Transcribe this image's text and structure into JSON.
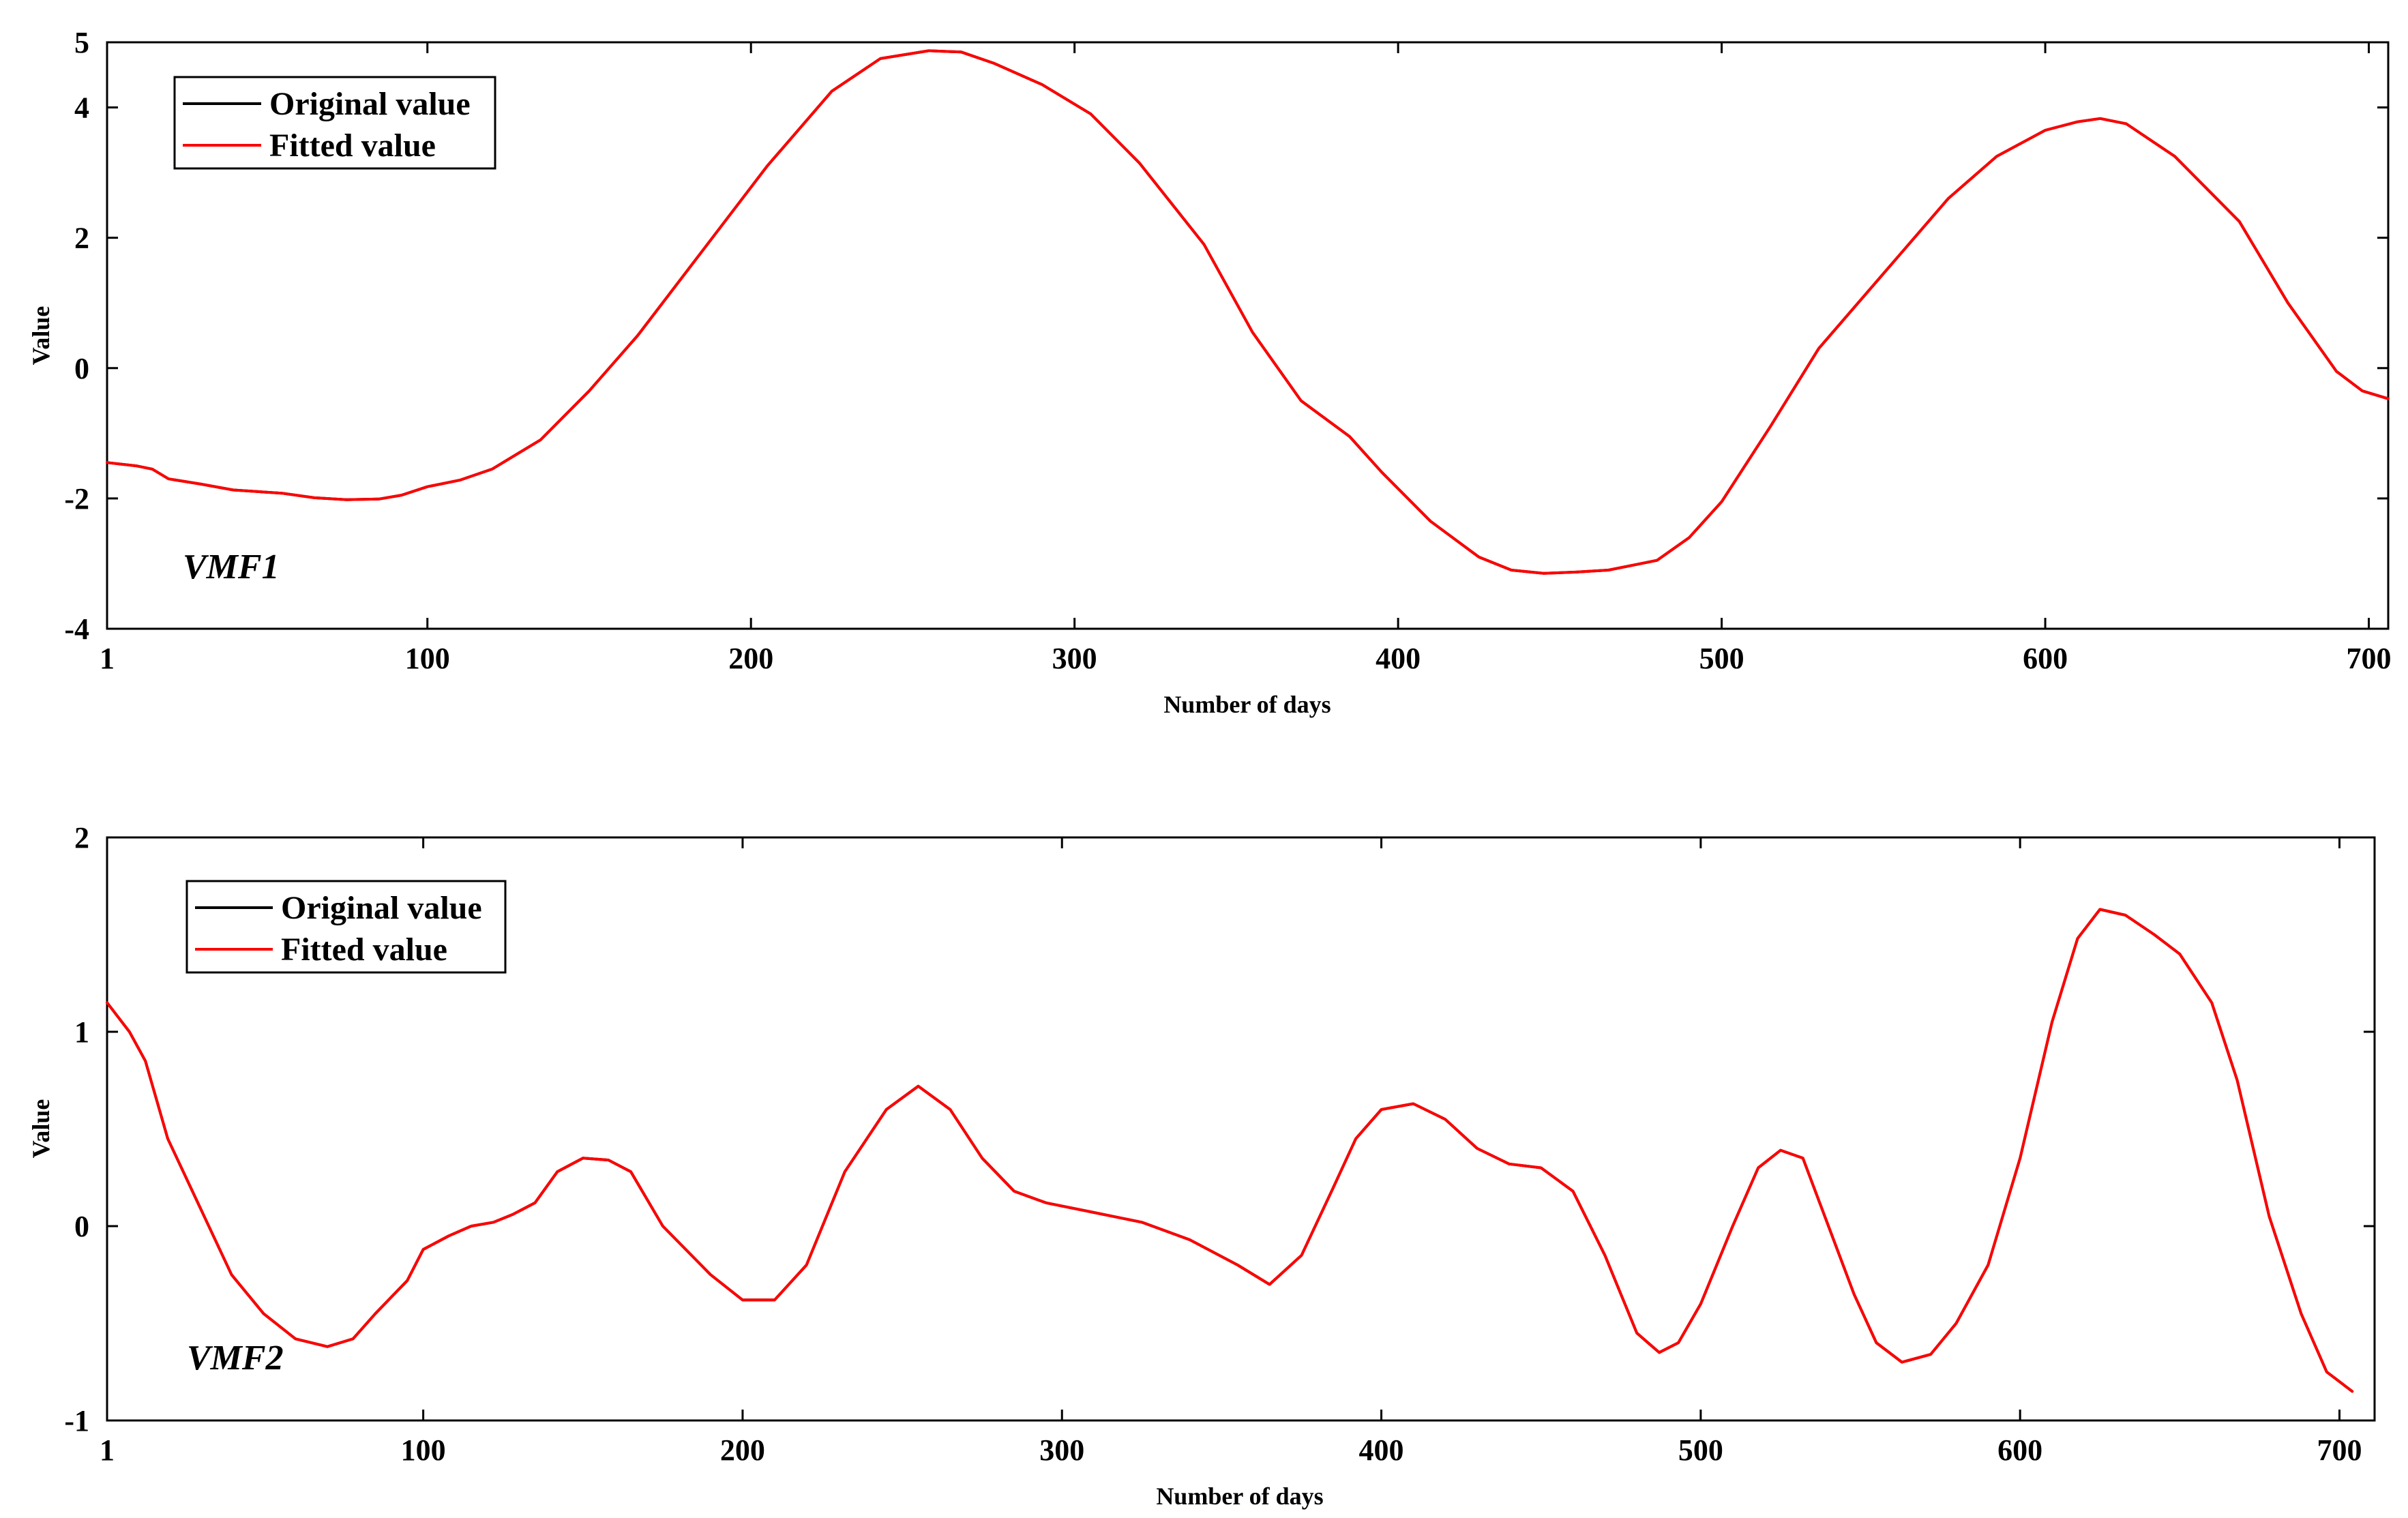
{
  "chart_data": [
    {
      "type": "line",
      "annotation": "VMF1",
      "xlabel": "Number of days",
      "ylabel": "Value",
      "xlim": [
        1,
        706
      ],
      "ylim": [
        -4,
        5
      ],
      "xticks": [
        1,
        100,
        200,
        300,
        400,
        500,
        600,
        700
      ],
      "yticks": [
        -4,
        -2,
        0,
        2,
        4,
        5
      ],
      "legend_position": "top-left",
      "grid": false,
      "series": [
        {
          "name": "Original value",
          "color": "#000000",
          "x": [
            1,
            10,
            15,
            20,
            30,
            40,
            55,
            65,
            75,
            85,
            92,
            100,
            110,
            120,
            135,
            150,
            165,
            185,
            205,
            225,
            240,
            255,
            265,
            275,
            290,
            305,
            320,
            340,
            355,
            370,
            385,
            395,
            410,
            425,
            435,
            445,
            455,
            465,
            480,
            490,
            500,
            515,
            530,
            550,
            570,
            585,
            600,
            610,
            617,
            625,
            640,
            660,
            675,
            690,
            698,
            706
          ],
          "y": [
            -1.45,
            -1.5,
            -1.55,
            -1.7,
            -1.78,
            -1.87,
            -1.92,
            -1.99,
            -2.02,
            -2.01,
            -1.95,
            -1.82,
            -1.72,
            -1.55,
            -1.1,
            -0.35,
            0.5,
            1.8,
            3.1,
            4.25,
            4.75,
            4.87,
            4.85,
            4.68,
            4.35,
            3.9,
            3.15,
            1.9,
            0.55,
            -0.5,
            -1.05,
            -1.6,
            -2.35,
            -2.9,
            -3.1,
            -3.15,
            -3.13,
            -3.1,
            -2.95,
            -2.6,
            -2.05,
            -0.9,
            0.3,
            1.45,
            2.6,
            3.25,
            3.65,
            3.78,
            3.83,
            3.75,
            3.25,
            2.25,
            1.0,
            -0.05,
            -0.35,
            -0.47
          ]
        },
        {
          "name": "Fitted value",
          "color": "#ff0000",
          "x": [
            1,
            10,
            15,
            20,
            30,
            40,
            55,
            65,
            75,
            85,
            92,
            100,
            110,
            120,
            135,
            150,
            165,
            185,
            205,
            225,
            240,
            255,
            265,
            275,
            290,
            305,
            320,
            340,
            355,
            370,
            385,
            395,
            410,
            425,
            435,
            445,
            455,
            465,
            480,
            490,
            500,
            515,
            530,
            550,
            570,
            585,
            600,
            610,
            617,
            625,
            640,
            660,
            675,
            690,
            698,
            706
          ],
          "y": [
            -1.45,
            -1.5,
            -1.55,
            -1.7,
            -1.78,
            -1.87,
            -1.92,
            -1.99,
            -2.02,
            -2.01,
            -1.95,
            -1.82,
            -1.72,
            -1.55,
            -1.1,
            -0.35,
            0.5,
            1.8,
            3.1,
            4.25,
            4.75,
            4.87,
            4.85,
            4.68,
            4.35,
            3.9,
            3.15,
            1.9,
            0.55,
            -0.5,
            -1.05,
            -1.6,
            -2.35,
            -2.9,
            -3.1,
            -3.15,
            -3.13,
            -3.1,
            -2.95,
            -2.6,
            -2.05,
            -0.9,
            0.3,
            1.45,
            2.6,
            3.25,
            3.65,
            3.78,
            3.83,
            3.75,
            3.25,
            2.25,
            1.0,
            -0.05,
            -0.35,
            -0.47
          ]
        }
      ]
    },
    {
      "type": "line",
      "annotation": "VMF2",
      "xlabel": "Number of days",
      "ylabel": "Value",
      "xlim": [
        1,
        711
      ],
      "ylim": [
        -1,
        2
      ],
      "xticks": [
        1,
        100,
        200,
        300,
        400,
        500,
        600,
        700
      ],
      "yticks": [
        -1,
        0,
        1,
        2
      ],
      "legend_position": "top-left",
      "grid": false,
      "series": [
        {
          "name": "Original value",
          "color": "#000000",
          "x": [
            1,
            8,
            13,
            20,
            30,
            40,
            50,
            60,
            70,
            78,
            85,
            95,
            100,
            108,
            115,
            122,
            128,
            135,
            142,
            150,
            158,
            165,
            175,
            190,
            200,
            210,
            220,
            232,
            245,
            255,
            265,
            275,
            285,
            295,
            310,
            325,
            340,
            355,
            365,
            375,
            385,
            392,
            400,
            410,
            420,
            430,
            440,
            450,
            460,
            470,
            480,
            487,
            493,
            500,
            510,
            518,
            525,
            532,
            540,
            548,
            555,
            563,
            572,
            580,
            590,
            600,
            610,
            618,
            625,
            633,
            642,
            650,
            660,
            668,
            678,
            688,
            696,
            704
          ],
          "y": [
            1.15,
            1.0,
            0.85,
            0.45,
            0.1,
            -0.25,
            -0.45,
            -0.58,
            -0.62,
            -0.58,
            -0.45,
            -0.28,
            -0.12,
            -0.05,
            0.0,
            0.02,
            0.06,
            0.12,
            0.28,
            0.35,
            0.34,
            0.28,
            0.0,
            -0.25,
            -0.38,
            -0.38,
            -0.2,
            0.28,
            0.6,
            0.72,
            0.6,
            0.35,
            0.18,
            0.12,
            0.07,
            0.02,
            -0.07,
            -0.2,
            -0.3,
            -0.15,
            0.2,
            0.45,
            0.6,
            0.63,
            0.55,
            0.4,
            0.32,
            0.3,
            0.18,
            -0.15,
            -0.55,
            -0.65,
            -0.6,
            -0.4,
            0.0,
            0.3,
            0.39,
            0.35,
            0.0,
            -0.35,
            -0.6,
            -0.7,
            -0.66,
            -0.5,
            -0.2,
            0.35,
            1.05,
            1.48,
            1.63,
            1.6,
            1.5,
            1.4,
            1.15,
            0.75,
            0.05,
            -0.45,
            -0.75,
            -0.85
          ]
        },
        {
          "name": "Fitted value",
          "color": "#ff0000",
          "x": [
            1,
            8,
            13,
            20,
            30,
            40,
            50,
            60,
            70,
            78,
            85,
            95,
            100,
            108,
            115,
            122,
            128,
            135,
            142,
            150,
            158,
            165,
            175,
            190,
            200,
            210,
            220,
            232,
            245,
            255,
            265,
            275,
            285,
            295,
            310,
            325,
            340,
            355,
            365,
            375,
            385,
            392,
            400,
            410,
            420,
            430,
            440,
            450,
            460,
            470,
            480,
            487,
            493,
            500,
            510,
            518,
            525,
            532,
            540,
            548,
            555,
            563,
            572,
            580,
            590,
            600,
            610,
            618,
            625,
            633,
            642,
            650,
            660,
            668,
            678,
            688,
            696,
            704
          ],
          "y": [
            1.15,
            1.0,
            0.85,
            0.45,
            0.1,
            -0.25,
            -0.45,
            -0.58,
            -0.62,
            -0.58,
            -0.45,
            -0.28,
            -0.12,
            -0.05,
            0.0,
            0.02,
            0.06,
            0.12,
            0.28,
            0.35,
            0.34,
            0.28,
            0.0,
            -0.25,
            -0.38,
            -0.38,
            -0.2,
            0.28,
            0.6,
            0.72,
            0.6,
            0.35,
            0.18,
            0.12,
            0.07,
            0.02,
            -0.07,
            -0.2,
            -0.3,
            -0.15,
            0.2,
            0.45,
            0.6,
            0.63,
            0.55,
            0.4,
            0.32,
            0.3,
            0.18,
            -0.15,
            -0.55,
            -0.65,
            -0.6,
            -0.4,
            0.0,
            0.3,
            0.39,
            0.35,
            0.0,
            -0.35,
            -0.6,
            -0.7,
            -0.66,
            -0.5,
            -0.2,
            0.35,
            1.05,
            1.48,
            1.63,
            1.6,
            1.5,
            1.4,
            1.15,
            0.75,
            0.05,
            -0.45,
            -0.75,
            -0.85
          ]
        }
      ]
    }
  ]
}
